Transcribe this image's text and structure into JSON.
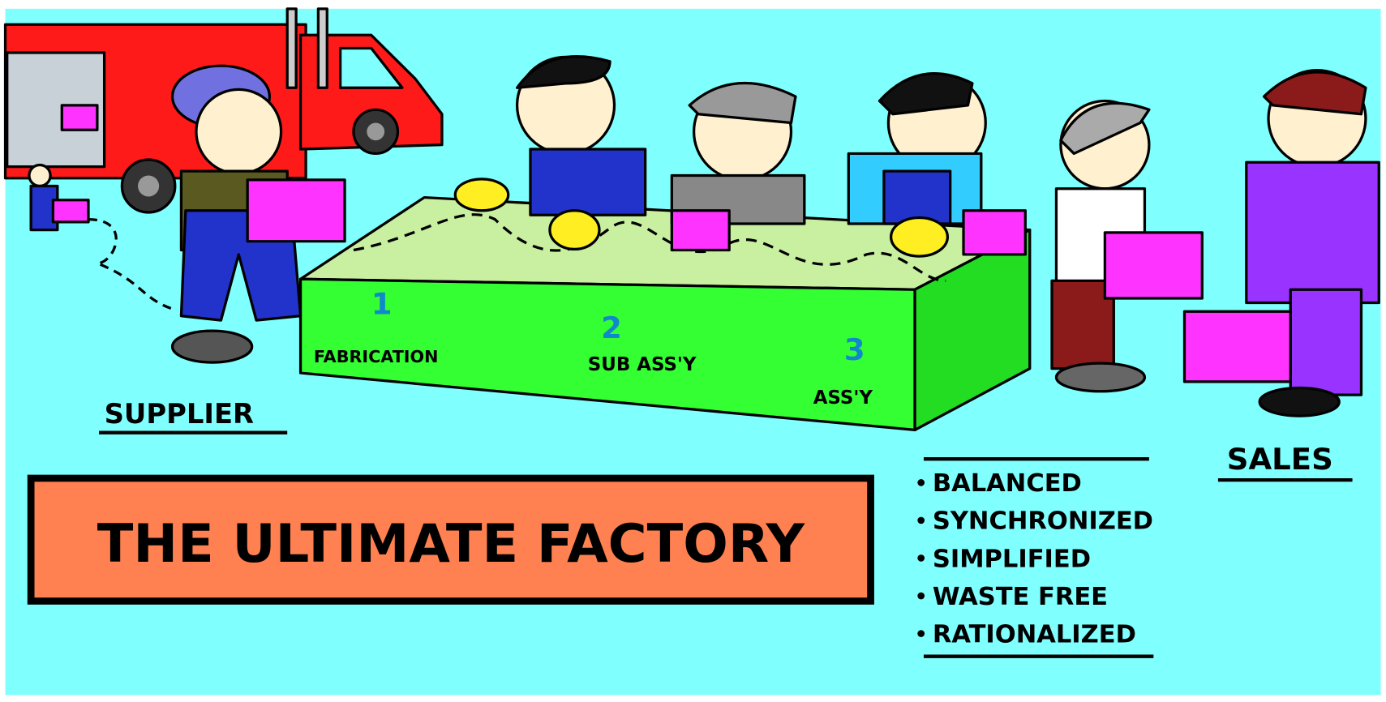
{
  "title": "THE ULTIMATE FACTORY",
  "labels": {
    "supplier": "SUPPLIER",
    "sales": "SALES"
  },
  "stations": [
    {
      "number": "1",
      "name": "FABRICATION"
    },
    {
      "number": "2",
      "name": "SUB ASS'Y"
    },
    {
      "number": "3",
      "name": "ASS'Y"
    }
  ],
  "qualities": [
    "BALANCED",
    "SYNCHRONIZED",
    "SIMPLIFIED",
    "WASTE FREE",
    "RATIONALIZED"
  ]
}
